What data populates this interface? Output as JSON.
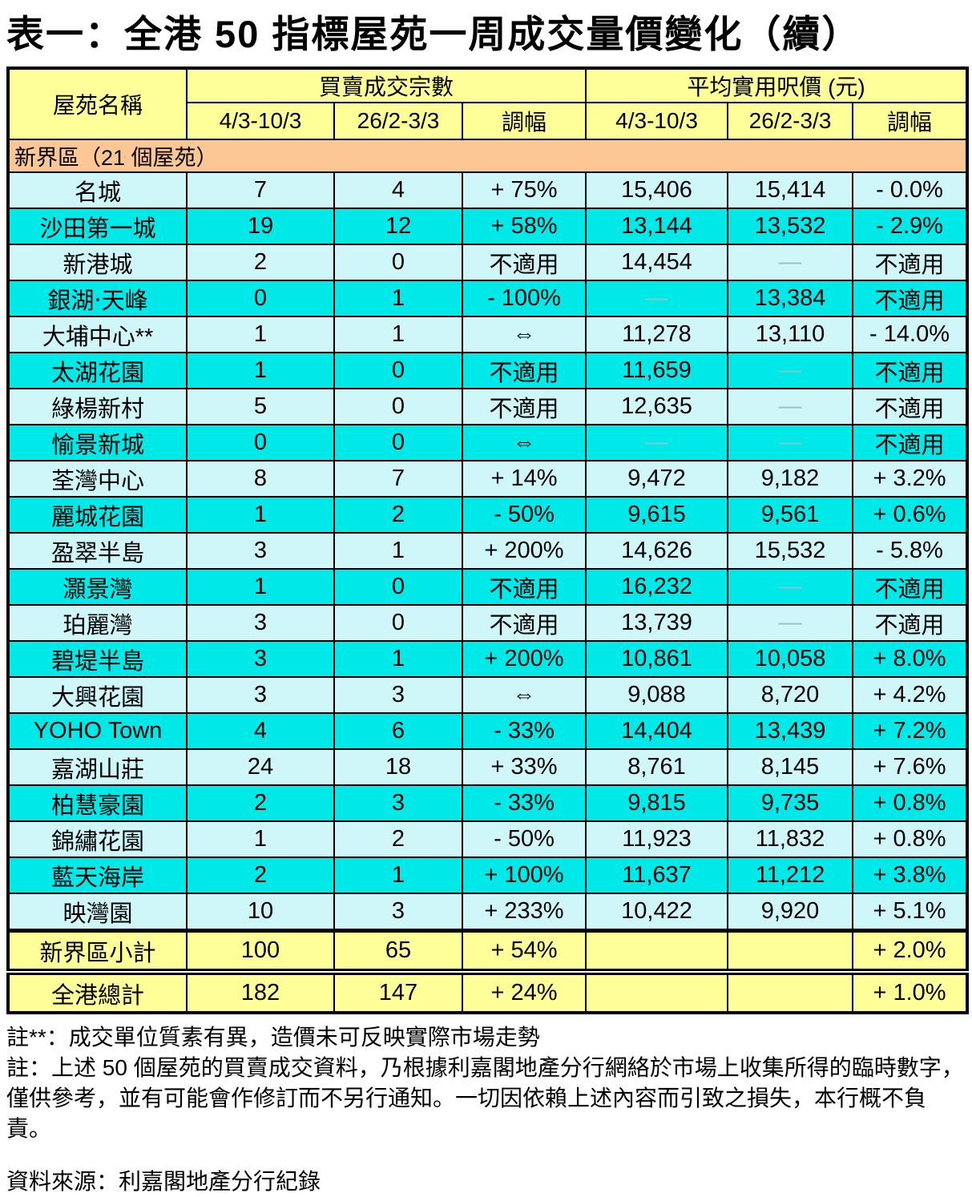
{
  "title": "表一：全港 50 指標屋苑一周成交量價變化（續）",
  "colors": {
    "header_yellow": "#FFFF99",
    "section_orange": "#FCC795",
    "row_light": "#CFF6F9",
    "row_bright": "#00E9E9",
    "dash_grey": "#97C0C2"
  },
  "table": {
    "headers": {
      "estate": "屋苑名稱",
      "volume_group": "買賣成交宗數",
      "price_group": "平均實用呎價 (元)",
      "period_current": "4/3-10/3",
      "period_previous": "26/2-3/3",
      "change": "調幅"
    },
    "section": "新界區（21 個屋苑）",
    "rows": [
      {
        "name": "名城",
        "vol_cur": "7",
        "vol_prev": "4",
        "vol_chg": "+ 75%",
        "px_cur": "15,406",
        "px_prev": "15,414",
        "px_chg": "- 0.0%"
      },
      {
        "name": "沙田第一城",
        "vol_cur": "19",
        "vol_prev": "12",
        "vol_chg": "+ 58%",
        "px_cur": "13,144",
        "px_prev": "13,532",
        "px_chg": "- 2.9%"
      },
      {
        "name": "新港城",
        "vol_cur": "2",
        "vol_prev": "0",
        "vol_chg": "不適用",
        "px_cur": "14,454",
        "px_prev": "—",
        "px_chg": "不適用"
      },
      {
        "name": "銀湖‧天峰",
        "vol_cur": "0",
        "vol_prev": "1",
        "vol_chg": "- 100%",
        "px_cur": "—",
        "px_prev": "13,384",
        "px_chg": "不適用"
      },
      {
        "name": "大埔中心**",
        "vol_cur": "1",
        "vol_prev": "1",
        "vol_chg": "⇔",
        "px_cur": "11,278",
        "px_prev": "13,110",
        "px_chg": "- 14.0%"
      },
      {
        "name": "太湖花園",
        "vol_cur": "1",
        "vol_prev": "0",
        "vol_chg": "不適用",
        "px_cur": "11,659",
        "px_prev": "—",
        "px_chg": "不適用"
      },
      {
        "name": "綠楊新村",
        "vol_cur": "5",
        "vol_prev": "0",
        "vol_chg": "不適用",
        "px_cur": "12,635",
        "px_prev": "—",
        "px_chg": "不適用"
      },
      {
        "name": "愉景新城",
        "vol_cur": "0",
        "vol_prev": "0",
        "vol_chg": "⇔",
        "px_cur": "—",
        "px_prev": "—",
        "px_chg": "不適用"
      },
      {
        "name": "荃灣中心",
        "vol_cur": "8",
        "vol_prev": "7",
        "vol_chg": "+ 14%",
        "px_cur": "9,472",
        "px_prev": "9,182",
        "px_chg": "+ 3.2%"
      },
      {
        "name": "麗城花園",
        "vol_cur": "1",
        "vol_prev": "2",
        "vol_chg": "- 50%",
        "px_cur": "9,615",
        "px_prev": "9,561",
        "px_chg": "+ 0.6%"
      },
      {
        "name": "盈翠半島",
        "vol_cur": "3",
        "vol_prev": "1",
        "vol_chg": "+ 200%",
        "px_cur": "14,626",
        "px_prev": "15,532",
        "px_chg": "- 5.8%"
      },
      {
        "name": "灝景灣",
        "vol_cur": "1",
        "vol_prev": "0",
        "vol_chg": "不適用",
        "px_cur": "16,232",
        "px_prev": "—",
        "px_chg": "不適用"
      },
      {
        "name": "珀麗灣",
        "vol_cur": "3",
        "vol_prev": "0",
        "vol_chg": "不適用",
        "px_cur": "13,739",
        "px_prev": "—",
        "px_chg": "不適用"
      },
      {
        "name": "碧堤半島",
        "vol_cur": "3",
        "vol_prev": "1",
        "vol_chg": "+ 200%",
        "px_cur": "10,861",
        "px_prev": "10,058",
        "px_chg": "+ 8.0%"
      },
      {
        "name": "大興花園",
        "vol_cur": "3",
        "vol_prev": "3",
        "vol_chg": "⇔",
        "px_cur": "9,088",
        "px_prev": "8,720",
        "px_chg": "+ 4.2%"
      },
      {
        "name": "YOHO Town",
        "vol_cur": "4",
        "vol_prev": "6",
        "vol_chg": "- 33%",
        "px_cur": "14,404",
        "px_prev": "13,439",
        "px_chg": "+ 7.2%"
      },
      {
        "name": "嘉湖山莊",
        "vol_cur": "24",
        "vol_prev": "18",
        "vol_chg": "+ 33%",
        "px_cur": "8,761",
        "px_prev": "8,145",
        "px_chg": "+ 7.6%"
      },
      {
        "name": "柏慧豪園",
        "vol_cur": "2",
        "vol_prev": "3",
        "vol_chg": "- 33%",
        "px_cur": "9,815",
        "px_prev": "9,735",
        "px_chg": "+ 0.8%"
      },
      {
        "name": "錦繡花園",
        "vol_cur": "1",
        "vol_prev": "2",
        "vol_chg": "- 50%",
        "px_cur": "11,923",
        "px_prev": "11,832",
        "px_chg": "+ 0.8%"
      },
      {
        "name": "藍天海岸",
        "vol_cur": "2",
        "vol_prev": "1",
        "vol_chg": "+ 100%",
        "px_cur": "11,637",
        "px_prev": "11,212",
        "px_chg": "+ 3.8%"
      },
      {
        "name": "映灣園",
        "vol_cur": "10",
        "vol_prev": "3",
        "vol_chg": "+ 233%",
        "px_cur": "10,422",
        "px_prev": "9,920",
        "px_chg": "+ 5.1%"
      }
    ],
    "subtotal": {
      "name": "新界區小計",
      "vol_cur": "100",
      "vol_prev": "65",
      "vol_chg": "+ 54%",
      "px_cur": "",
      "px_prev": "",
      "px_chg": "+ 2.0%"
    },
    "total": {
      "name": "全港總計",
      "vol_cur": "182",
      "vol_prev": "147",
      "vol_chg": "+ 24%",
      "px_cur": "",
      "px_prev": "",
      "px_chg": "+ 1.0%"
    }
  },
  "notes": [
    "註**：成交單位質素有異，造價未可反映實際市場走勢",
    "註：上述 50 個屋苑的買賣成交資料，乃根據利嘉閣地產分行網絡於市場上收集所得的臨時數字，僅供參考，並有可能會作修訂而不另行通知。一切因依賴上述內容而引致之損失，本行概不負責。"
  ],
  "source": "資料來源：利嘉閣地產分行紀錄"
}
